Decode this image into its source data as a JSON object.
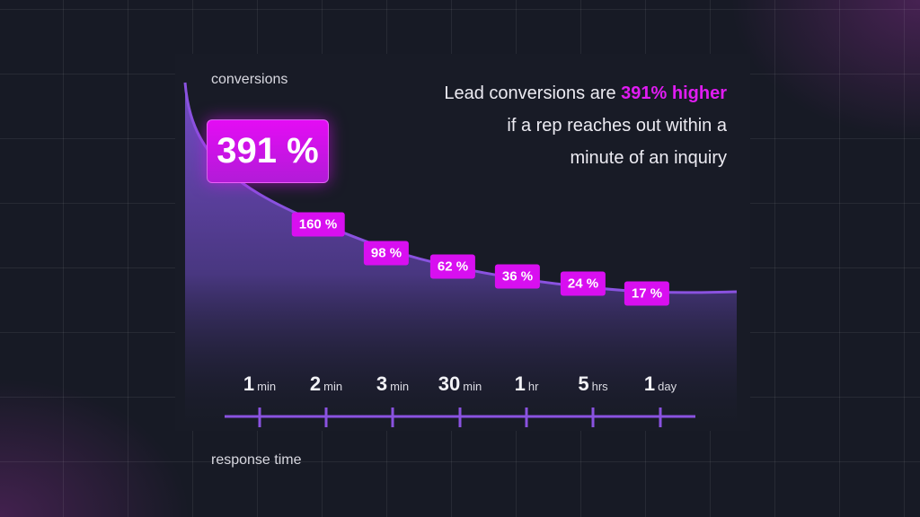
{
  "chart_data": {
    "type": "area",
    "title": "Lead conversions are 391% higher if a rep reaches out within a minute of an inquiry",
    "ylabel": "conversions",
    "xlabel": "response time",
    "categories": [
      {
        "num": "1",
        "unit": "min"
      },
      {
        "num": "2",
        "unit": "min"
      },
      {
        "num": "3",
        "unit": "min"
      },
      {
        "num": "30",
        "unit": "min"
      },
      {
        "num": "1",
        "unit": "hr"
      },
      {
        "num": "5",
        "unit": "hrs"
      },
      {
        "num": "1",
        "unit": "day"
      }
    ],
    "values": [
      391,
      160,
      98,
      62,
      36,
      24,
      17
    ],
    "labels": [
      "391 %",
      "160 %",
      "98 %",
      "62 %",
      "36 %",
      "24 %",
      "17 %"
    ],
    "grid": false,
    "colors": {
      "accent": "#d80ff0",
      "line": "#8a52e0"
    }
  },
  "headline": {
    "pre": "Lead conversions are ",
    "highlight": "391% higher",
    "line2": "if a rep reaches out within a",
    "line3": "minute of an inquiry"
  }
}
